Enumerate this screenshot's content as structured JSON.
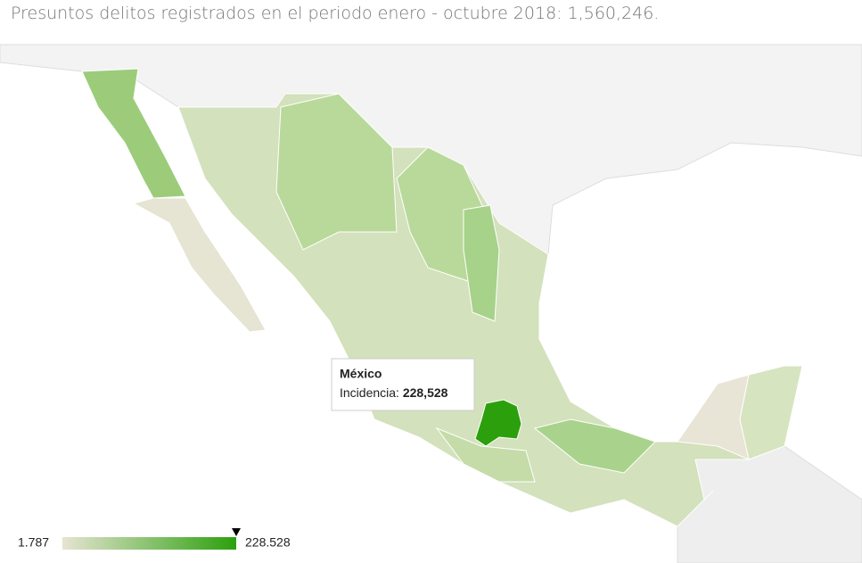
{
  "title": "Presuntos delitos registrados en el periodo enero - octubre 2018: 1,560,246.",
  "color_axis": {
    "min": {
      "value": 1787,
      "label": "1.787"
    },
    "max": {
      "value": 228528,
      "label": "228.528"
    },
    "colors": [
      "#e6e4d2",
      "#2ca00c"
    ]
  },
  "tooltip": {
    "region": "México",
    "metric": "Incidencia:",
    "value": {
      "value": 228528,
      "label": "228,528"
    }
  }
}
